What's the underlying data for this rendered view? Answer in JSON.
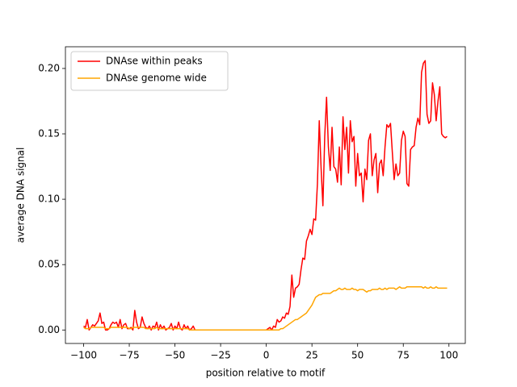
{
  "chart_data": {
    "type": "line",
    "xlabel": "position relative to motif",
    "ylabel": "average DNA signal",
    "legend": "upper left",
    "xlim": [
      -109.95,
      108.95
    ],
    "ylim": [
      -0.0103,
      0.2166
    ],
    "xticks": [
      {
        "value": -100,
        "label": "−100"
      },
      {
        "value": -75,
        "label": "−75"
      },
      {
        "value": -50,
        "label": "−50"
      },
      {
        "value": -25,
        "label": "−25"
      },
      0,
      25,
      50,
      75,
      100
    ],
    "yticks": [
      {
        "value": 0,
        "label": "0.00"
      },
      {
        "value": 0.05,
        "label": "0.05"
      },
      {
        "value": 0.1,
        "label": "0.10"
      },
      {
        "value": 0.15,
        "label": "0.15"
      },
      {
        "value": 0.2,
        "label": "0.20"
      }
    ],
    "x": [
      -100,
      -99,
      -98,
      -97,
      -96,
      -95,
      -94,
      -93,
      -92,
      -91,
      -90,
      -89,
      -88,
      -87,
      -86,
      -85,
      -84,
      -83,
      -82,
      -81,
      -80,
      -79,
      -78,
      -77,
      -76,
      -75,
      -74,
      -73,
      -72,
      -71,
      -70,
      -69,
      -68,
      -67,
      -66,
      -65,
      -64,
      -63,
      -62,
      -61,
      -60,
      -59,
      -58,
      -57,
      -56,
      -55,
      -54,
      -53,
      -52,
      -51,
      -50,
      -49,
      -48,
      -47,
      -46,
      -45,
      -44,
      -43,
      -42,
      -41,
      -40,
      -39,
      -38,
      -37,
      -36,
      -35,
      -34,
      -33,
      -32,
      -31,
      -30,
      -29,
      -28,
      -27,
      -26,
      -25,
      -24,
      -23,
      -22,
      -21,
      -20,
      -19,
      -18,
      -17,
      -16,
      -15,
      -14,
      -13,
      -12,
      -11,
      -10,
      -9,
      -8,
      -7,
      -6,
      -5,
      -4,
      -3,
      -2,
      -1,
      0,
      1,
      2,
      3,
      4,
      5,
      6,
      7,
      8,
      9,
      10,
      11,
      12,
      13,
      14,
      15,
      16,
      17,
      18,
      19,
      20,
      21,
      22,
      23,
      24,
      25,
      26,
      27,
      28,
      29,
      30,
      31,
      32,
      33,
      34,
      35,
      36,
      37,
      38,
      39,
      40,
      41,
      42,
      43,
      44,
      45,
      46,
      47,
      48,
      49,
      50,
      51,
      52,
      53,
      54,
      55,
      56,
      57,
      58,
      59,
      60,
      61,
      62,
      63,
      64,
      65,
      66,
      67,
      68,
      69,
      70,
      71,
      72,
      73,
      74,
      75,
      76,
      77,
      78,
      79,
      80,
      81,
      82,
      83,
      84,
      85,
      86,
      87,
      88,
      89,
      90,
      91,
      92,
      93,
      94,
      95,
      96,
      97,
      98,
      99
    ],
    "series": [
      {
        "name": "DNAse within peaks",
        "color": "#ff0000",
        "values": [
          0.003,
          0.002,
          0.008,
          0,
          0.002,
          0.004,
          0.003,
          0.005,
          0.007,
          0.013,
          0.005,
          0.006,
          0,
          0,
          0.001,
          0.004,
          0.006,
          0.005,
          0.006,
          0.002,
          0.008,
          0.001,
          0.004,
          0.005,
          0.001,
          0.001,
          0.002,
          0,
          0.015,
          0.006,
          0.001,
          0.002,
          0.01,
          0.005,
          0.002,
          0.001,
          0.003,
          0,
          0.003,
          0.002,
          0.006,
          0,
          0.004,
          0.001,
          0.003,
          0,
          0.001,
          0.002,
          0.005,
          0,
          0.003,
          0.001,
          0.006,
          0.001,
          0,
          0.004,
          0.001,
          0.003,
          0,
          0.001,
          0.003,
          0,
          0,
          0,
          0,
          0,
          0,
          0,
          0,
          0,
          0,
          0,
          0,
          0,
          0,
          0,
          0,
          0,
          0,
          0,
          0,
          0,
          0,
          0,
          0,
          0,
          0,
          0,
          0,
          0,
          0,
          0,
          0,
          0,
          0,
          0,
          0,
          0,
          0,
          0,
          0,
          0.001,
          0.002,
          0,
          0.003,
          0.002,
          0.008,
          0.006,
          0.007,
          0.01,
          0.009,
          0.013,
          0.012,
          0.018,
          0.042,
          0.025,
          0.032,
          0.033,
          0.035,
          0.046,
          0.055,
          0.054,
          0.068,
          0.072,
          0.077,
          0.073,
          0.085,
          0.084,
          0.112,
          0.16,
          0.124,
          0.095,
          0.148,
          0.178,
          0.14,
          0.122,
          0.155,
          0.125,
          0.123,
          0.113,
          0.14,
          0.111,
          0.163,
          0.138,
          0.155,
          0.12,
          0.16,
          0.144,
          0.148,
          0.11,
          0.135,
          0.118,
          0.12,
          0.098,
          0.123,
          0.115,
          0.145,
          0.15,
          0.118,
          0.13,
          0.135,
          0.105,
          0.127,
          0.13,
          0.118,
          0.14,
          0.157,
          0.155,
          0.158,
          0.136,
          0.115,
          0.127,
          0.118,
          0.12,
          0.145,
          0.152,
          0.148,
          0.112,
          0.11,
          0.138,
          0.14,
          0.141,
          0.155,
          0.162,
          0.157,
          0.197,
          0.204,
          0.206,
          0.165,
          0.158,
          0.16,
          0.189,
          0.18,
          0.16,
          0.175,
          0.186,
          0.15,
          0.148,
          0.147,
          0.148
        ]
      },
      {
        "name": "DNAse genome wide",
        "color": "#ffa500",
        "values": [
          0.002,
          0.001,
          0.001,
          0.001,
          0.002,
          0.002,
          0.002,
          0.002,
          0.002,
          0.002,
          0.002,
          0.002,
          0.001,
          0.001,
          0.001,
          0.002,
          0.002,
          0.002,
          0.002,
          0.002,
          0.002,
          0.002,
          0.002,
          0.002,
          0.002,
          0.001,
          0.001,
          0.002,
          0.002,
          0.002,
          0.002,
          0.002,
          0.002,
          0.002,
          0.001,
          0.001,
          0.001,
          0.001,
          0.001,
          0.001,
          0.002,
          0.001,
          0.001,
          0.001,
          0.001,
          0.001,
          0.001,
          0.001,
          0.001,
          0.001,
          0.001,
          0.001,
          0.001,
          0.001,
          0.001,
          0.001,
          0.001,
          0.001,
          0,
          0,
          0,
          0,
          0,
          0,
          0,
          0,
          0,
          0,
          0,
          0,
          0,
          0,
          0,
          0,
          0,
          0,
          0,
          0,
          0,
          0,
          0,
          0,
          0,
          0,
          0,
          0,
          0,
          0,
          0,
          0,
          0,
          0,
          0,
          0,
          0,
          0,
          0,
          0,
          0,
          0,
          0,
          0,
          0,
          0,
          0,
          0,
          0,
          0,
          0.001,
          0.001,
          0.002,
          0.003,
          0.004,
          0.005,
          0.006,
          0.007,
          0.008,
          0.008,
          0.009,
          0.01,
          0.011,
          0.012,
          0.013,
          0.015,
          0.017,
          0.019,
          0.022,
          0.025,
          0.026,
          0.027,
          0.027,
          0.028,
          0.028,
          0.028,
          0.028,
          0.028,
          0.029,
          0.03,
          0.03,
          0.031,
          0.032,
          0.031,
          0.031,
          0.032,
          0.031,
          0.031,
          0.031,
          0.032,
          0.031,
          0.031,
          0.03,
          0.031,
          0.031,
          0.031,
          0.03,
          0.029,
          0.03,
          0.03,
          0.031,
          0.031,
          0.031,
          0.031,
          0.032,
          0.031,
          0.031,
          0.032,
          0.031,
          0.032,
          0.032,
          0.032,
          0.032,
          0.031,
          0.032,
          0.033,
          0.032,
          0.032,
          0.032,
          0.033,
          0.033,
          0.033,
          0.033,
          0.033,
          0.033,
          0.033,
          0.033,
          0.033,
          0.032,
          0.033,
          0.032,
          0.032,
          0.033,
          0.032,
          0.032,
          0.033,
          0.032,
          0.032,
          0.032,
          0.032,
          0.032,
          0.032
        ]
      }
    ]
  }
}
